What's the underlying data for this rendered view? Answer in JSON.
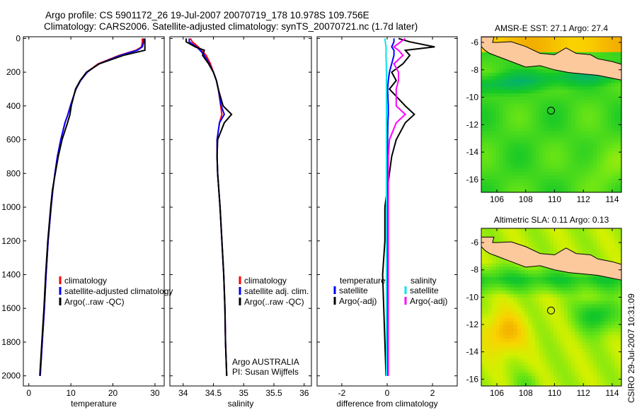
{
  "header": {
    "title_line1": "Argo profile: CS 5901172_26 19-Jul-2007 20070719_178 10.978S 109.756E",
    "title_line2": "Climatology: CARS2006. Satellite-adjusted climatology: synTS_20070721.nc (1.7d later)",
    "side_stamp": "CSIRO 29-Jul-2007 10:31:09"
  },
  "colors": {
    "climatology": "#ff0000",
    "satellite": "#0000ff",
    "argo": "#000000",
    "sal_satellite": "#00e5ee",
    "sal_argo": "#ff00ff"
  },
  "chart_data": [
    {
      "type": "line",
      "id": "temperature",
      "xlabel": "temperature",
      "ylabel": "",
      "xlim": [
        -1.3,
        32.2
      ],
      "ylim": [
        -10,
        2060
      ],
      "y_reversed": true,
      "xticks": [
        0,
        10,
        20,
        30
      ],
      "yticks": [
        0,
        200,
        400,
        600,
        800,
        1000,
        1200,
        1400,
        1600,
        1800,
        2000
      ],
      "depth": [
        0,
        20,
        50,
        70,
        100,
        150,
        200,
        250,
        300,
        400,
        450,
        500,
        600,
        700,
        800,
        900,
        1000,
        1200,
        1400,
        1600,
        1800,
        2000
      ],
      "series": [
        {
          "name": "climatology",
          "color": "#ff0000",
          "values": [
            27.0,
            27.0,
            26.8,
            25.5,
            21.5,
            16.5,
            13.8,
            12.3,
            11.2,
            9.9,
            9.3,
            8.6,
            7.6,
            6.8,
            6.2,
            5.7,
            5.3,
            4.6,
            4.1,
            3.7,
            3.2,
            2.7
          ]
        },
        {
          "name": "satellite-adjusted climatology",
          "color": "#0000ff",
          "values": [
            27.3,
            27.3,
            27.0,
            25.8,
            21.8,
            16.7,
            13.9,
            12.3,
            11.2,
            9.9,
            9.3,
            8.6,
            7.6,
            6.8,
            6.2,
            5.7,
            5.3,
            4.6,
            4.1,
            3.7,
            3.2,
            2.7
          ]
        },
        {
          "name": "Argo(..raw -QC)",
          "color": "#000000",
          "values": [
            27.6,
            27.6,
            27.6,
            27.6,
            22.5,
            16.8,
            13.7,
            12.2,
            11.1,
            10.1,
            9.8,
            9.2,
            7.9,
            7.0,
            6.3,
            5.6,
            5.2,
            4.5,
            4.0,
            3.6,
            3.1,
            2.6
          ]
        }
      ],
      "legend": [
        "climatology",
        "satellite-adjusted climatology",
        "Argo(..raw -QC)"
      ]
    },
    {
      "type": "line",
      "id": "salinity",
      "xlabel": "salinity",
      "xlim": [
        33.78,
        36.12
      ],
      "ylim": [
        -10,
        2060
      ],
      "y_reversed": true,
      "xticks": [
        34,
        34.5,
        35,
        35.5,
        36
      ],
      "yticks": [
        0,
        200,
        400,
        600,
        800,
        1000,
        1200,
        1400,
        1600,
        1800,
        2000
      ],
      "depth": [
        0,
        20,
        50,
        70,
        100,
        150,
        200,
        250,
        300,
        400,
        450,
        500,
        600,
        700,
        800,
        900,
        1000,
        1200,
        1400,
        1600,
        1800,
        2000
      ],
      "series": [
        {
          "name": "climatology",
          "color": "#ff0000",
          "values": [
            34.12,
            34.15,
            34.25,
            34.3,
            34.38,
            34.45,
            34.5,
            34.55,
            34.58,
            34.62,
            34.64,
            34.6,
            34.56,
            34.56,
            34.57,
            34.59,
            34.61,
            34.64,
            34.67,
            34.69,
            34.7,
            34.72
          ]
        },
        {
          "name": "satellite adj. clim.",
          "color": "#0000ff",
          "values": [
            34.1,
            34.1,
            34.22,
            34.28,
            34.35,
            34.43,
            34.5,
            34.55,
            34.58,
            34.63,
            34.68,
            34.6,
            34.56,
            34.56,
            34.57,
            34.59,
            34.61,
            34.64,
            34.67,
            34.69,
            34.7,
            34.72
          ]
        },
        {
          "name": "Argo(..raw -QC)",
          "color": "#000000",
          "values": [
            34.05,
            34.05,
            34.2,
            34.35,
            34.32,
            34.42,
            34.5,
            34.55,
            34.58,
            34.66,
            34.8,
            34.68,
            34.57,
            34.56,
            34.57,
            34.59,
            34.61,
            34.64,
            34.67,
            34.69,
            34.7,
            34.72
          ]
        }
      ],
      "legend": [
        "climatology",
        "satellite adj. clim.",
        "Argo(..raw -QC)"
      ],
      "annotation": [
        "Argo AUSTRALIA",
        "PI: Susan Wijffels"
      ]
    },
    {
      "type": "line",
      "id": "difference",
      "xlabel": "difference from climatology",
      "xlim": [
        -3.09,
        3.09
      ],
      "ylim": [
        -10,
        2060
      ],
      "y_reversed": true,
      "xticks": [
        -2,
        0,
        2
      ],
      "yticks": [
        0,
        200,
        400,
        600,
        800,
        1000,
        1200,
        1400,
        1600,
        1800,
        2000
      ],
      "depth": [
        0,
        20,
        50,
        70,
        100,
        150,
        200,
        250,
        300,
        400,
        450,
        500,
        600,
        700,
        800,
        900,
        1000,
        1200,
        1400,
        1600,
        1800,
        2000
      ],
      "series": [
        {
          "name": "temperature satellite",
          "color": "#0000ff",
          "values": [
            0.3,
            0.3,
            0.2,
            0.3,
            0.3,
            0.2,
            0.1,
            0.05,
            0.02,
            0.05,
            0.05,
            0.03,
            0.02,
            0.02,
            0.01,
            0.01,
            0.01,
            0.01,
            0,
            0,
            0,
            0
          ]
        },
        {
          "name": "temperature Argo(-adj)",
          "color": "#000000",
          "values": [
            0.5,
            1.0,
            2.1,
            0.8,
            1.0,
            0.7,
            0.2,
            0.4,
            0.1,
            0.8,
            1.2,
            0.8,
            0.4,
            0.2,
            0.1,
            0,
            -0.1,
            -0.1,
            -0.2,
            -0.15,
            -0.1,
            -0.05
          ]
        },
        {
          "name": "salinity satellite",
          "color": "#00e5ee",
          "values": [
            -0.1,
            -0.08,
            -0.05,
            -0.05,
            -0.05,
            -0.04,
            -0.03,
            -0.03,
            -0.03,
            -0.03,
            -0.03,
            -0.03,
            -0.03,
            -0.03,
            -0.03,
            -0.03,
            -0.03,
            -0.03,
            -0.03,
            -0.03,
            -0.03,
            -0.03
          ]
        },
        {
          "name": "salinity Argo(-adj)",
          "color": "#ff00ff",
          "values": [
            0.8,
            0.6,
            0.3,
            0.5,
            0.7,
            0.3,
            0.5,
            0.5,
            0.4,
            0.4,
            0.8,
            0.4,
            0.1,
            0.05,
            0.05,
            0.05,
            0.05,
            0.05,
            0.05,
            0.05,
            0.05,
            0.05
          ]
        }
      ],
      "legend_headers": [
        "temperature",
        "salinity"
      ],
      "legend_temperature": [
        "satellite",
        "Argo(-adj)"
      ],
      "legend_salinity": [
        "satellite",
        "Argo(-adj)"
      ]
    },
    {
      "type": "heatmap",
      "id": "sst_map",
      "title": "AMSR-E SST: 27.1 Argo: 27.4",
      "xlim": [
        104.92,
        114.64
      ],
      "ylim": [
        -16.93,
        -5.59
      ],
      "xticks": [
        106,
        108,
        110,
        112,
        114
      ],
      "yticks": [
        -6,
        -8,
        -10,
        -12,
        -14,
        -16
      ],
      "marker": {
        "lon": 109.756,
        "lat": -10.978
      }
    },
    {
      "type": "heatmap",
      "id": "sla_map",
      "title": "Altimetric SLA: 0.11 Argo: 0.13",
      "xlim": [
        104.92,
        114.64
      ],
      "ylim": [
        -16.5,
        -4.96
      ],
      "xticks": [
        106,
        108,
        110,
        112,
        114
      ],
      "yticks": [
        -6,
        -8,
        -10,
        -12,
        -14,
        -16
      ],
      "marker": {
        "lon": 109.756,
        "lat": -10.978
      }
    }
  ]
}
